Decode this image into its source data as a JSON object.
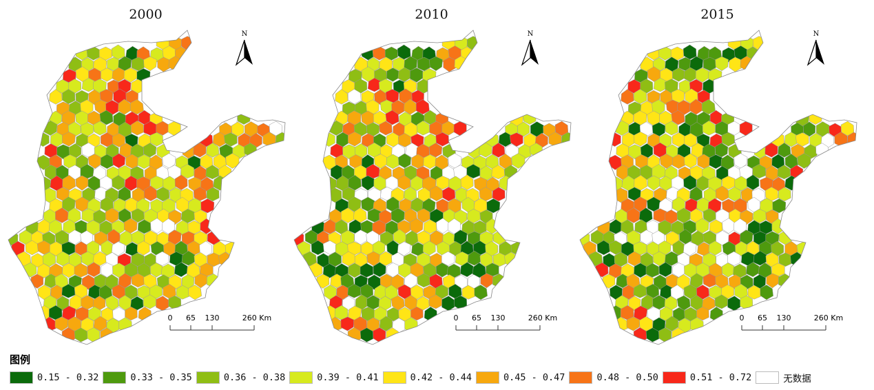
{
  "panels": [
    {
      "year": "2000",
      "mix": [
        0.03,
        0.06,
        0.16,
        0.25,
        0.19,
        0.14,
        0.08,
        0.05,
        0.04
      ]
    },
    {
      "year": "2010",
      "mix": [
        0.08,
        0.09,
        0.15,
        0.24,
        0.16,
        0.12,
        0.07,
        0.05,
        0.04
      ]
    },
    {
      "year": "2015",
      "mix": [
        0.1,
        0.1,
        0.15,
        0.24,
        0.15,
        0.11,
        0.06,
        0.05,
        0.04
      ]
    }
  ],
  "north_label": "N",
  "scalebar": {
    "ticks": [
      "0",
      "65",
      "130",
      "260 Km"
    ]
  },
  "legend": {
    "title": "图例",
    "items": [
      {
        "label": "0.15 - 0.32",
        "color": "#0b6b0b"
      },
      {
        "label": "0.33 - 0.35",
        "color": "#4e9a0e"
      },
      {
        "label": "0.36 - 0.38",
        "color": "#8fbe14"
      },
      {
        "label": "0.39 - 0.41",
        "color": "#d7ea1e"
      },
      {
        "label": "0.42 - 0.44",
        "color": "#ffe516"
      },
      {
        "label": "0.45 - 0.47",
        "color": "#f7a80e"
      },
      {
        "label": "0.48 - 0.50",
        "color": "#f77417"
      },
      {
        "label": "0.51 - 0.72",
        "color": "#f8281a"
      },
      {
        "label": "无数据",
        "color": "#ffffff"
      }
    ]
  }
}
